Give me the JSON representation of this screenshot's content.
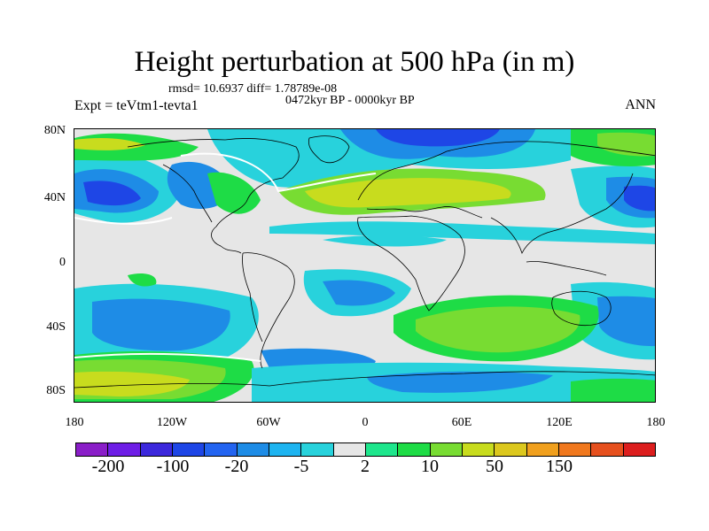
{
  "title": "Height perturbation at 500 hPa (in m)",
  "stats": "rmsd= 10.6937 diff= 1.78789e-08",
  "period": "0472kyr BP - 0000kyr BP",
  "experiment": "Expt = teVtm1-tevta1",
  "season": "ANN",
  "lat_labels": [
    "80N",
    "40N",
    "0",
    "40S",
    "80S"
  ],
  "lon_labels": [
    "180",
    "120W",
    "60W",
    "0",
    "60E",
    "120E",
    "180"
  ],
  "colorbar": {
    "colors": [
      "#8a1ec8",
      "#6e1ee6",
      "#3c28dc",
      "#1e46e6",
      "#2364f0",
      "#1e8ce6",
      "#1eb4f0",
      "#28d2dc",
      "#e6e6e6",
      "#1ee68c",
      "#1edc46",
      "#78dc32",
      "#c8dc1e",
      "#dcc81e",
      "#f0a01e",
      "#f0781e",
      "#e6501e",
      "#dc1e1e"
    ],
    "labels": [
      "-200",
      "-100",
      "-20",
      "-5",
      "2",
      "10",
      "50",
      "150"
    ]
  },
  "palette": {
    "background": "#e6e6e6",
    "neg_light": "#28d2dc",
    "neg_mid": "#1e8ce6",
    "neg_dark": "#1e46e6",
    "neg_darkest": "#3c28dc",
    "pos_light": "#1ee68c",
    "pos_mid": "#78dc32",
    "pos_high": "#c8dc1e",
    "pos_max": "#dcc81e"
  }
}
